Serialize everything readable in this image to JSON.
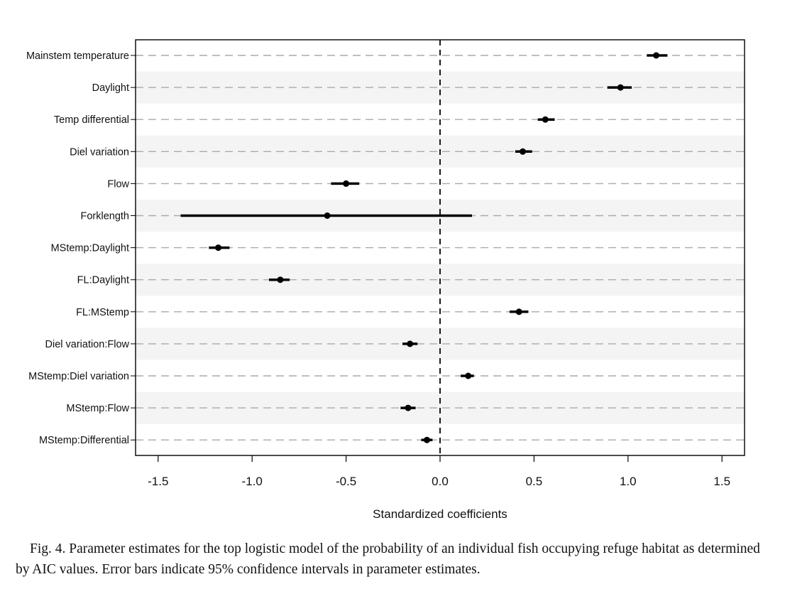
{
  "chart_data": {
    "type": "coefficient-plot",
    "xlabel": "Standardized coefficients",
    "xlim": [
      -1.62,
      1.62
    ],
    "xticks": [
      -1.5,
      -1.0,
      -0.5,
      0.0,
      0.5,
      1.0,
      1.5
    ],
    "xtick_labels": [
      "-1.5",
      "-1.0",
      "-0.5",
      "0.0",
      "0.5",
      "1.0",
      "1.5"
    ],
    "reference_line": 0.0,
    "parameters": [
      {
        "label": "Mainstem temperature",
        "estimate": 1.15,
        "ci_low": 1.1,
        "ci_high": 1.21
      },
      {
        "label": "Daylight",
        "estimate": 0.96,
        "ci_low": 0.89,
        "ci_high": 1.02
      },
      {
        "label": "Temp differential",
        "estimate": 0.56,
        "ci_low": 0.52,
        "ci_high": 0.61
      },
      {
        "label": "Diel variation",
        "estimate": 0.44,
        "ci_low": 0.4,
        "ci_high": 0.49
      },
      {
        "label": "Flow",
        "estimate": -0.5,
        "ci_low": -0.58,
        "ci_high": -0.43
      },
      {
        "label": "Forklength",
        "estimate": -0.6,
        "ci_low": -1.38,
        "ci_high": 0.17
      },
      {
        "label": "MStemp:Daylight",
        "estimate": -1.18,
        "ci_low": -1.23,
        "ci_high": -1.12
      },
      {
        "label": "FL:Daylight",
        "estimate": -0.85,
        "ci_low": -0.91,
        "ci_high": -0.8
      },
      {
        "label": "FL:MStemp",
        "estimate": 0.42,
        "ci_low": 0.37,
        "ci_high": 0.47
      },
      {
        "label": "Diel variation:Flow",
        "estimate": -0.16,
        "ci_low": -0.2,
        "ci_high": -0.12
      },
      {
        "label": "MStemp:Diel variation",
        "estimate": 0.15,
        "ci_low": 0.11,
        "ci_high": 0.18
      },
      {
        "label": "MStemp:Flow",
        "estimate": -0.17,
        "ci_low": -0.21,
        "ci_high": -0.13
      },
      {
        "label": "MStemp:Differential",
        "estimate": -0.07,
        "ci_low": -0.1,
        "ci_high": -0.04
      }
    ]
  },
  "caption": "Fig. 4. Parameter estimates for the top logistic model of the probability of an individual fish occupying refuge habitat as determined by AIC values. Error bars indicate 95% confidence intervals in parameter estimates.",
  "colors": {
    "stripe": "#f4f4f4",
    "grid": "#aaaaaa",
    "mark": "#000000"
  }
}
